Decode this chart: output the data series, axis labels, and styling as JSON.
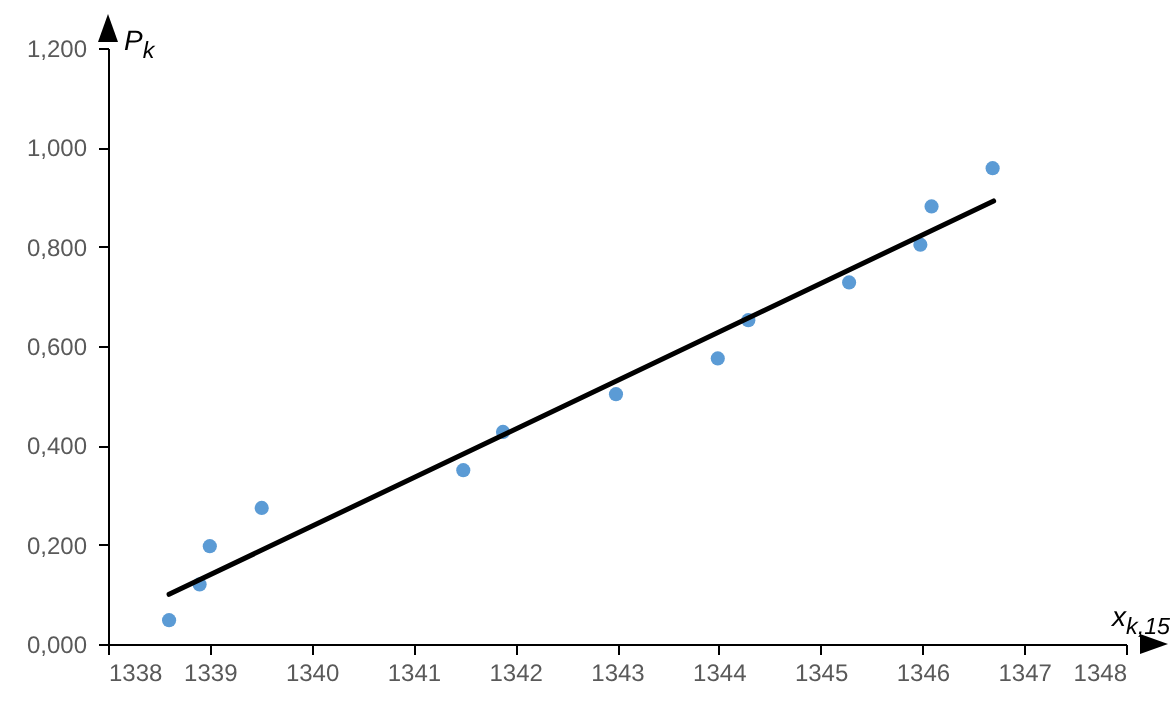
{
  "chart_data": {
    "type": "scatter",
    "xlabel": "x$_{k,15}$",
    "ylabel": "P$_{k}$",
    "xlim": [
      1338,
      1348
    ],
    "xticks": [
      1338,
      1339,
      1340,
      1341,
      1342,
      1343,
      1344,
      1345,
      1346,
      1347,
      1348
    ],
    "ylim": [
      0,
      1.2
    ],
    "yticks": [
      {
        "value": 0,
        "label": "0,000"
      },
      {
        "value": 0.2,
        "label": "0,200"
      },
      {
        "value": 0.4,
        "label": "0,400"
      },
      {
        "value": 0.6,
        "label": "0,600"
      },
      {
        "value": 0.8,
        "label": "0,800"
      },
      {
        "value": 1,
        "label": "1,000"
      },
      {
        "value": 1.2,
        "label": "1,200"
      }
    ],
    "grid": false,
    "series": [
      {
        "color": "#5b9bd5",
        "marker": "circle",
        "x": [
          1338.6,
          1338.9,
          1339.0,
          1339.51,
          1341.49,
          1341.88,
          1342.99,
          1343.99,
          1344.29,
          1345.28,
          1345.98,
          1346.09,
          1346.69
        ],
        "values": [
          0.048,
          0.12,
          0.197,
          0.274,
          0.35,
          0.427,
          0.503,
          0.575,
          0.652,
          0.728,
          0.804,
          0.881,
          0.958
        ]
      },
      {
        "type": "line",
        "color": "#000000",
        "x": [
          1338.6,
          1346.7
        ],
        "values": [
          0.1,
          0.892
        ],
        "line_style": "solid"
      }
    ]
  }
}
